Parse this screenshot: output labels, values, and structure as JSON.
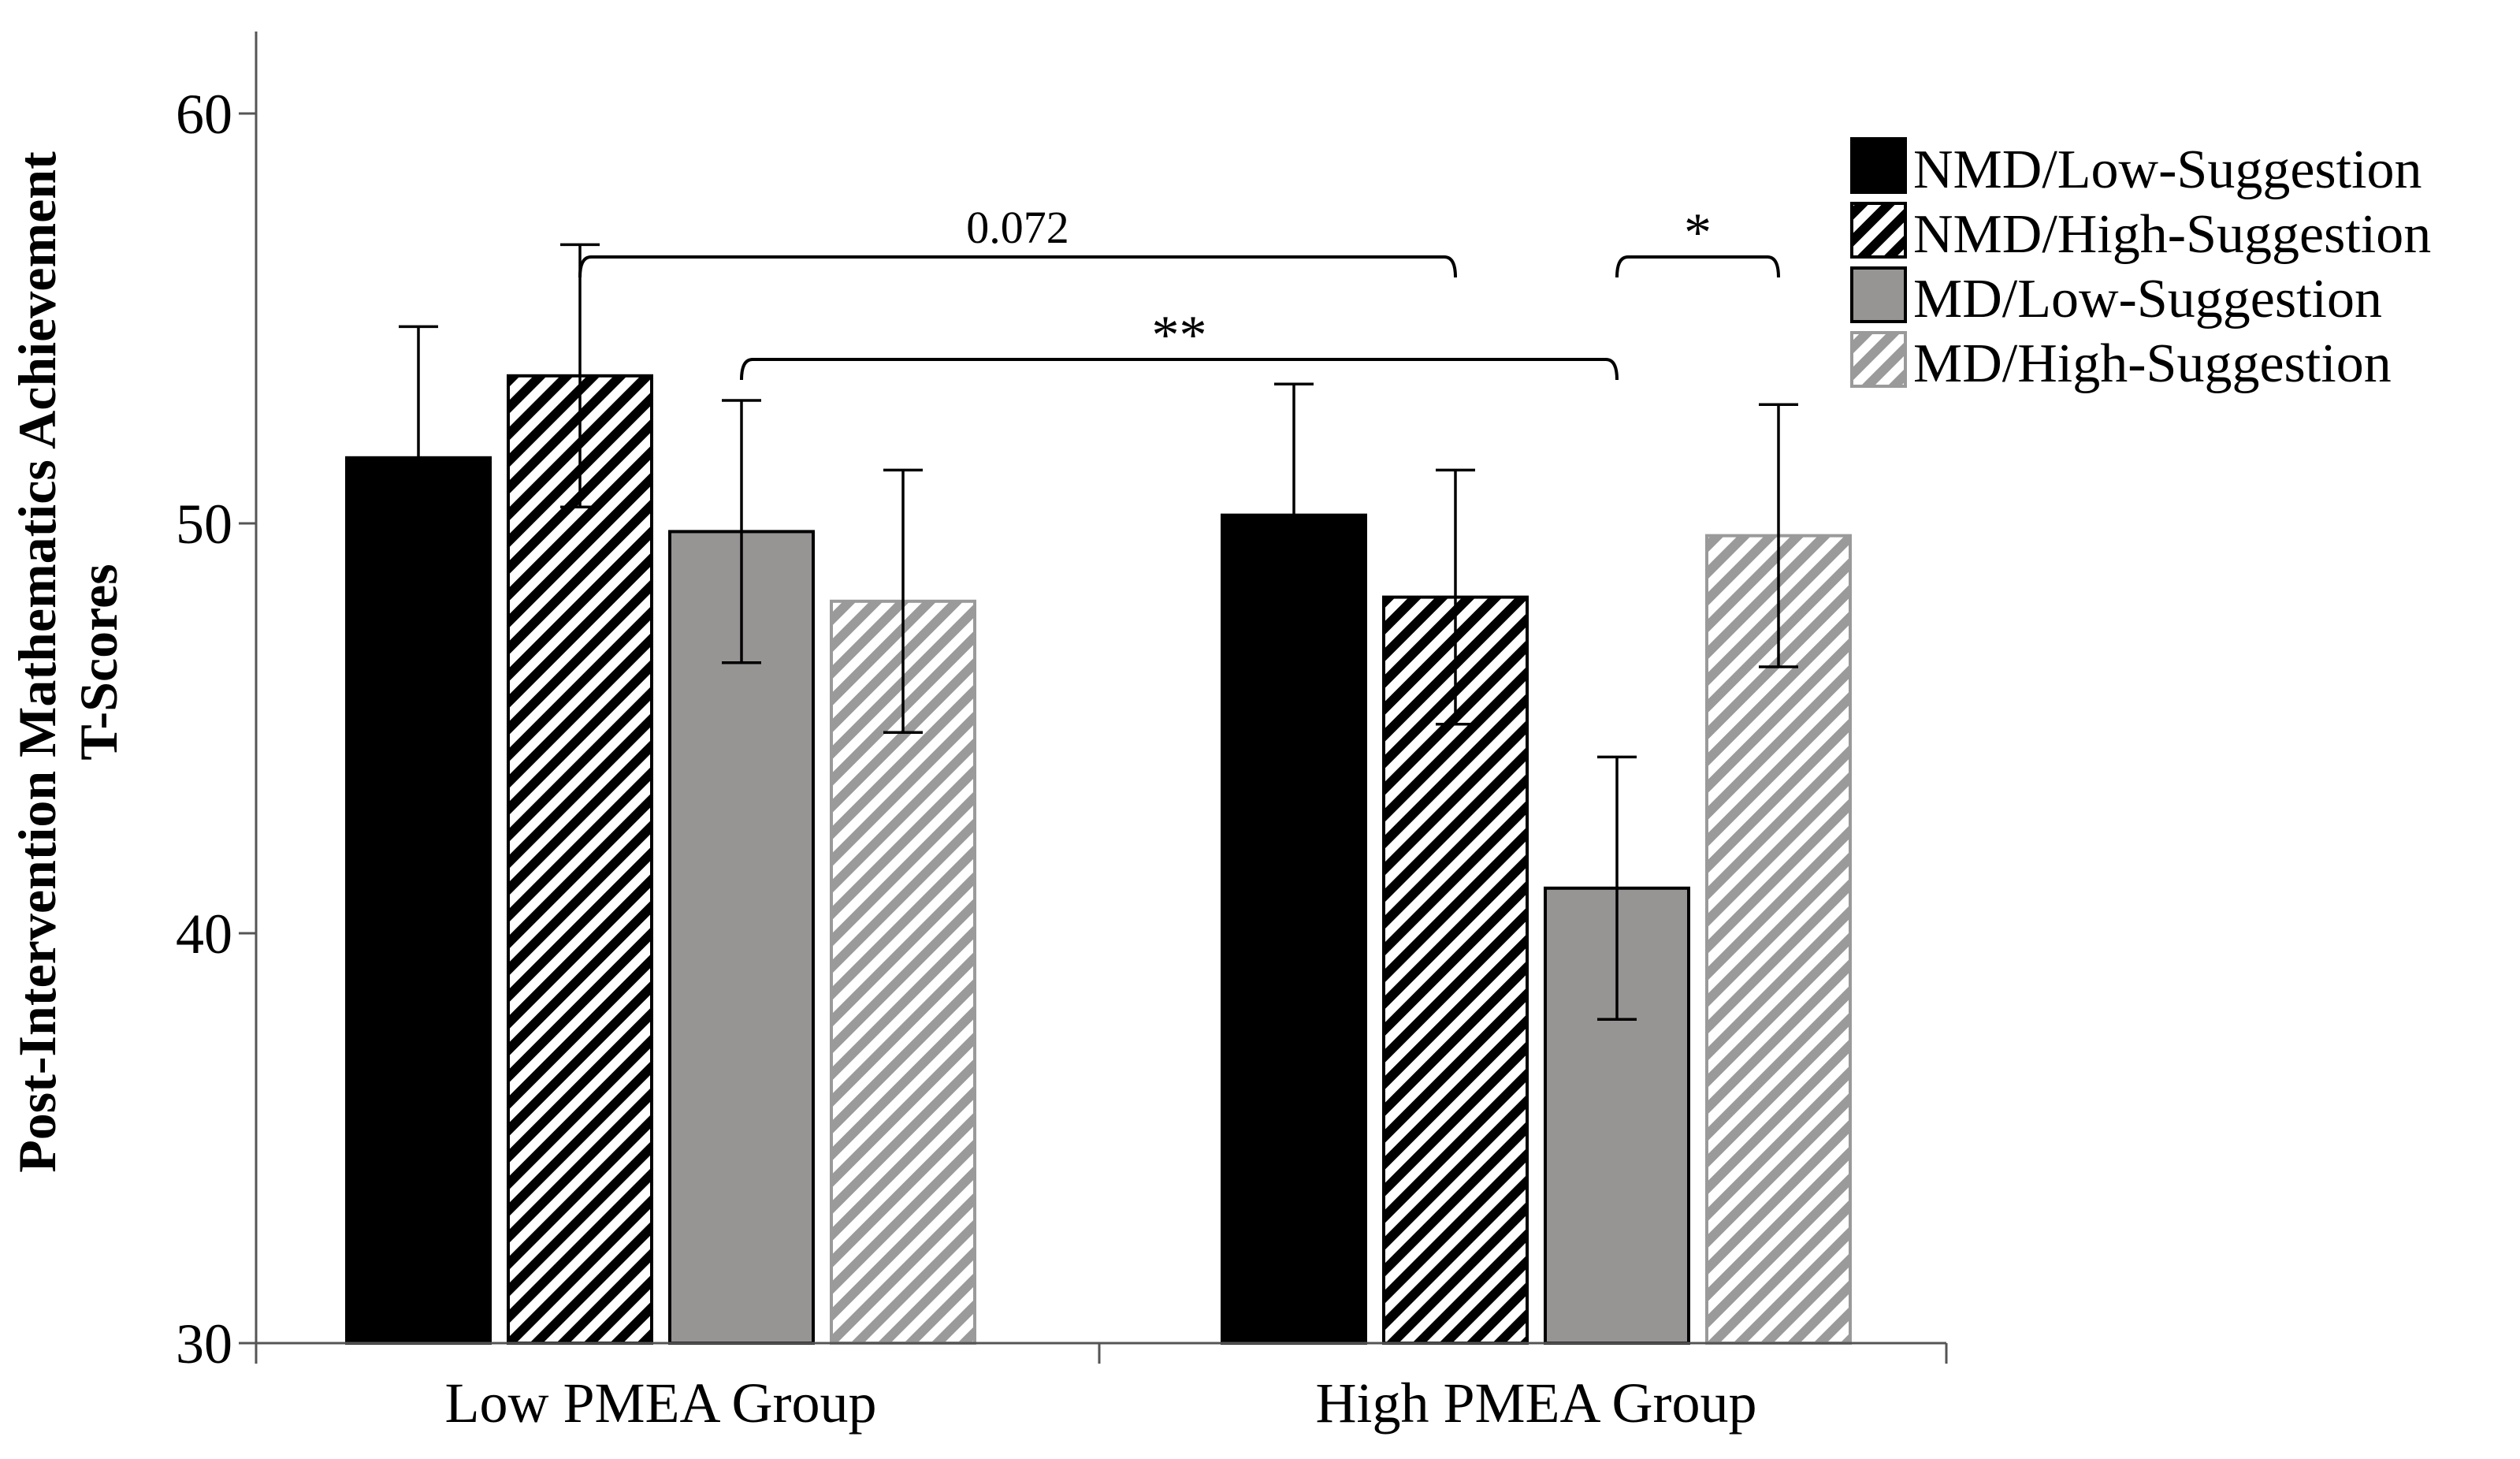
{
  "chart_data": {
    "type": "bar",
    "categories": [
      "Low PMEA Group",
      "High PMEA Group"
    ],
    "series": [
      {
        "name": "NMD/Low-Suggestion",
        "values": [
          51.6,
          50.2
        ],
        "error": [
          3.2,
          3.2
        ],
        "fill": "#000000",
        "pattern": "solid"
      },
      {
        "name": "NMD/High-Suggestion",
        "values": [
          53.6,
          48.2
        ],
        "error": [
          3.2,
          3.1
        ],
        "fill": "#000000",
        "pattern": "hatch-dark"
      },
      {
        "name": "MD/Low-Suggestion",
        "values": [
          49.8,
          41.1
        ],
        "error": [
          3.2,
          3.2
        ],
        "fill": "#979494",
        "pattern": "solid"
      },
      {
        "name": "MD/High-Suggestion",
        "values": [
          48.1,
          49.7
        ],
        "error": [
          3.2,
          3.2
        ],
        "fill": "#9a9a9a",
        "pattern": "hatch-light"
      }
    ],
    "ylabel_line1": "Post-Intervention Mathematics Achievement",
    "ylabel_line2": "T-Scores",
    "xlabel": "",
    "ylim": [
      30,
      62
    ],
    "yticks": [
      30,
      40,
      50,
      60
    ],
    "grid": false,
    "legend_position": "top-right",
    "annotations": [
      {
        "label": "0.072",
        "from": [
          0,
          1
        ],
        "to": [
          1,
          1
        ],
        "level": 56.5,
        "style": "small"
      },
      {
        "label": "**",
        "from": [
          0,
          2
        ],
        "to": [
          1,
          2
        ],
        "level": 54.0,
        "style": "star"
      },
      {
        "label": "*",
        "from": [
          1,
          2
        ],
        "to": [
          1,
          3
        ],
        "level": 56.5,
        "style": "star"
      }
    ]
  }
}
